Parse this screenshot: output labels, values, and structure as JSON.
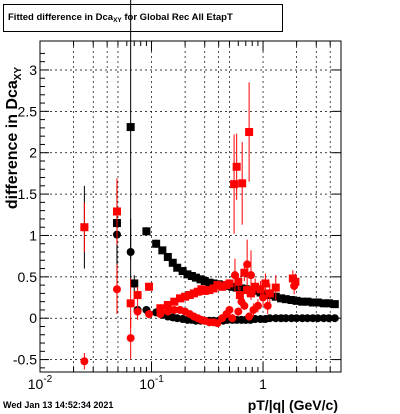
{
  "title": {
    "prefix": "Fitted difference in Dca",
    "subscript": "XY",
    "suffix": " for Global Rec All EtapT"
  },
  "timestamp": "Wed Jan 13 14:52:34 2021",
  "chart_data": {
    "type": "scatter",
    "title": "Fitted difference in Dca_XY for Global Rec All EtapT",
    "xlabel": "pT/|q| (GeV/c)",
    "ylabel_main": "difference in Dca",
    "ylabel_sub": "XY",
    "xscale": "log",
    "xlim": [
      0.01,
      5
    ],
    "ylim": [
      -0.65,
      3.35
    ],
    "grid": true,
    "x_ticks": [
      {
        "value": 0.01,
        "base": "10",
        "exp": "-2"
      },
      {
        "value": 0.1,
        "base": "10",
        "exp": "-1"
      },
      {
        "value": 1,
        "base": "1",
        "exp": ""
      }
    ],
    "y_ticks": [
      -0.5,
      0,
      0.5,
      1,
      1.5,
      2,
      2.5,
      3
    ],
    "y_tick_labels": [
      "-0.5",
      "0",
      "0.5",
      "1",
      "1.5",
      "2",
      "2.5",
      "3"
    ],
    "series": [
      {
        "color": "#000000",
        "marker": "square",
        "points": [
          [
            0.049,
            1.15,
            0.5
          ],
          [
            0.065,
            2.31,
            1.6
          ],
          [
            0.07,
            0.42,
            0.1
          ],
          [
            0.09,
            1.05,
            0.05
          ],
          [
            0.11,
            0.9,
            0.05
          ],
          [
            0.125,
            0.82,
            0.04
          ],
          [
            0.14,
            0.74,
            0.03
          ],
          [
            0.155,
            0.67,
            0.03
          ],
          [
            0.17,
            0.61,
            0.02
          ],
          [
            0.19,
            0.57,
            0.02
          ],
          [
            0.21,
            0.53,
            0.02
          ],
          [
            0.23,
            0.51,
            0.02
          ],
          [
            0.25,
            0.49,
            0.02
          ],
          [
            0.275,
            0.47,
            0.02
          ],
          [
            0.3,
            0.45,
            0.02
          ],
          [
            0.33,
            0.43,
            0.02
          ],
          [
            0.36,
            0.42,
            0.02
          ],
          [
            0.4,
            0.41,
            0.02
          ],
          [
            0.44,
            0.4,
            0.02
          ],
          [
            0.48,
            0.39,
            0.02
          ],
          [
            0.53,
            0.38,
            0.02
          ],
          [
            0.58,
            0.37,
            0.02
          ],
          [
            0.64,
            0.36,
            0.02
          ],
          [
            0.7,
            0.35,
            0.02
          ],
          [
            0.77,
            0.34,
            0.02
          ],
          [
            0.85,
            0.33,
            0.02
          ],
          [
            0.95,
            0.31,
            0.02
          ],
          [
            1.05,
            0.29,
            0.02
          ],
          [
            1.15,
            0.28,
            0.02
          ],
          [
            1.3,
            0.26,
            0.02
          ],
          [
            1.45,
            0.24,
            0.02
          ],
          [
            1.6,
            0.23,
            0.02
          ],
          [
            1.8,
            0.22,
            0.02
          ],
          [
            2.0,
            0.21,
            0.02
          ],
          [
            2.25,
            0.2,
            0.02
          ],
          [
            2.5,
            0.2,
            0.02
          ],
          [
            2.8,
            0.19,
            0.02
          ],
          [
            3.1,
            0.19,
            0.02
          ],
          [
            3.5,
            0.18,
            0.02
          ],
          [
            3.9,
            0.18,
            0.02
          ],
          [
            4.4,
            0.17,
            0.02
          ]
        ]
      },
      {
        "color": "#000000",
        "marker": "circle",
        "points": [
          [
            0.025,
            1.1,
            0.5
          ],
          [
            0.049,
            1.01,
            0.6
          ],
          [
            0.065,
            0.8,
            0.4
          ],
          [
            0.075,
            0.1,
            0.05
          ],
          [
            0.09,
            0.1,
            0.03
          ],
          [
            0.11,
            0.07,
            0.03
          ],
          [
            0.125,
            0.04,
            0.02
          ],
          [
            0.14,
            0.02,
            0.02
          ],
          [
            0.155,
            0.01,
            0.02
          ],
          [
            0.17,
            0.0,
            0.02
          ],
          [
            0.19,
            -0.01,
            0.02
          ],
          [
            0.21,
            -0.02,
            0.02
          ],
          [
            0.23,
            -0.02,
            0.02
          ],
          [
            0.25,
            -0.03,
            0.02
          ],
          [
            0.275,
            -0.03,
            0.02
          ],
          [
            0.3,
            -0.03,
            0.02
          ],
          [
            0.33,
            -0.03,
            0.02
          ],
          [
            0.36,
            -0.03,
            0.02
          ],
          [
            0.4,
            -0.03,
            0.02
          ],
          [
            0.44,
            -0.03,
            0.02
          ],
          [
            0.48,
            -0.02,
            0.02
          ],
          [
            0.53,
            -0.02,
            0.02
          ],
          [
            0.58,
            -0.02,
            0.02
          ],
          [
            0.64,
            -0.02,
            0.02
          ],
          [
            0.7,
            -0.02,
            0.02
          ],
          [
            0.77,
            -0.02,
            0.02
          ],
          [
            0.85,
            -0.01,
            0.02
          ],
          [
            0.95,
            -0.01,
            0.02
          ],
          [
            1.05,
            -0.01,
            0.02
          ],
          [
            1.15,
            0.0,
            0.02
          ],
          [
            1.3,
            0.0,
            0.02
          ],
          [
            1.45,
            0.0,
            0.02
          ],
          [
            1.6,
            0.0,
            0.02
          ],
          [
            1.8,
            0.0,
            0.02
          ],
          [
            2.0,
            0.0,
            0.02
          ],
          [
            2.25,
            0.0,
            0.02
          ],
          [
            2.5,
            0.0,
            0.02
          ],
          [
            2.8,
            0.0,
            0.02
          ],
          [
            3.1,
            0.0,
            0.02
          ],
          [
            3.5,
            0.0,
            0.02
          ],
          [
            3.9,
            0.0,
            0.02
          ],
          [
            4.4,
            0.0,
            0.02
          ]
        ]
      },
      {
        "color": "#ff0000",
        "marker": "square",
        "points": [
          [
            0.025,
            1.1,
            0.3
          ],
          [
            0.049,
            1.29,
            0.4
          ],
          [
            0.065,
            0.18,
            0.3
          ],
          [
            0.075,
            0.28,
            0.1
          ],
          [
            0.095,
            0.38,
            0.05
          ],
          [
            0.12,
            0.12,
            0.05
          ],
          [
            0.14,
            0.16,
            0.04
          ],
          [
            0.16,
            0.2,
            0.04
          ],
          [
            0.18,
            0.24,
            0.04
          ],
          [
            0.2,
            0.26,
            0.04
          ],
          [
            0.22,
            0.28,
            0.04
          ],
          [
            0.24,
            0.3,
            0.04
          ],
          [
            0.26,
            0.32,
            0.04
          ],
          [
            0.28,
            0.35,
            0.04
          ],
          [
            0.3,
            0.33,
            0.04
          ],
          [
            0.33,
            0.34,
            0.04
          ],
          [
            0.36,
            0.36,
            0.04
          ],
          [
            0.39,
            0.4,
            0.05
          ],
          [
            0.43,
            0.38,
            0.05
          ],
          [
            0.47,
            0.4,
            0.05
          ],
          [
            0.5,
            0.42,
            0.05
          ],
          [
            0.55,
            1.62,
            0.6
          ],
          [
            0.58,
            1.83,
            0.4
          ],
          [
            0.6,
            0.44,
            0.1
          ],
          [
            0.62,
            0.28,
            0.1
          ],
          [
            0.65,
            1.63,
            0.5
          ],
          [
            0.68,
            0.55,
            0.1
          ],
          [
            0.72,
            0.34,
            0.08
          ],
          [
            0.75,
            2.25,
            0.6
          ],
          [
            0.78,
            0.3,
            0.08
          ],
          [
            0.85,
            0.38,
            0.1
          ],
          [
            0.95,
            0.35,
            0.1
          ],
          [
            1.05,
            0.42,
            0.12
          ],
          [
            1.15,
            0.3,
            0.12
          ],
          [
            1.3,
            0.37,
            0.15
          ],
          [
            1.85,
            0.48,
            0.1
          ],
          [
            1.95,
            0.44,
            0.1
          ]
        ]
      },
      {
        "color": "#ff0000",
        "marker": "circle",
        "points": [
          [
            0.025,
            -0.52,
            0.1
          ],
          [
            0.049,
            0.35,
            0.3
          ],
          [
            0.065,
            -0.24,
            0.25
          ],
          [
            0.075,
            0.08,
            0.1
          ],
          [
            0.095,
            0.05,
            0.05
          ],
          [
            0.12,
            0.05,
            0.04
          ],
          [
            0.14,
            0.08,
            0.04
          ],
          [
            0.16,
            0.1,
            0.04
          ],
          [
            0.18,
            0.1,
            0.03
          ],
          [
            0.2,
            0.08,
            0.03
          ],
          [
            0.22,
            0.05,
            0.03
          ],
          [
            0.24,
            0.02,
            0.03
          ],
          [
            0.26,
            0.0,
            0.03
          ],
          [
            0.28,
            -0.02,
            0.03
          ],
          [
            0.3,
            -0.03,
            0.03
          ],
          [
            0.33,
            -0.05,
            0.03
          ],
          [
            0.36,
            -0.05,
            0.03
          ],
          [
            0.39,
            -0.06,
            0.03
          ],
          [
            0.43,
            0.0,
            0.04
          ],
          [
            0.47,
            0.05,
            0.04
          ],
          [
            0.5,
            0.1,
            0.05
          ],
          [
            0.53,
            0.0,
            0.05
          ],
          [
            0.56,
            0.52,
            0.2
          ],
          [
            0.6,
            0.08,
            0.05
          ],
          [
            0.64,
            0.2,
            0.05
          ],
          [
            0.68,
            0.15,
            0.05
          ],
          [
            0.72,
            0.65,
            0.3
          ],
          [
            0.75,
            0.02,
            0.05
          ],
          [
            0.78,
            0.52,
            0.3
          ],
          [
            0.82,
            0.1,
            0.08
          ],
          [
            0.9,
            0.15,
            0.08
          ],
          [
            1.0,
            0.25,
            0.1
          ],
          [
            1.1,
            0.15,
            0.1
          ],
          [
            1.9,
            0.39,
            0.1
          ]
        ]
      }
    ]
  }
}
